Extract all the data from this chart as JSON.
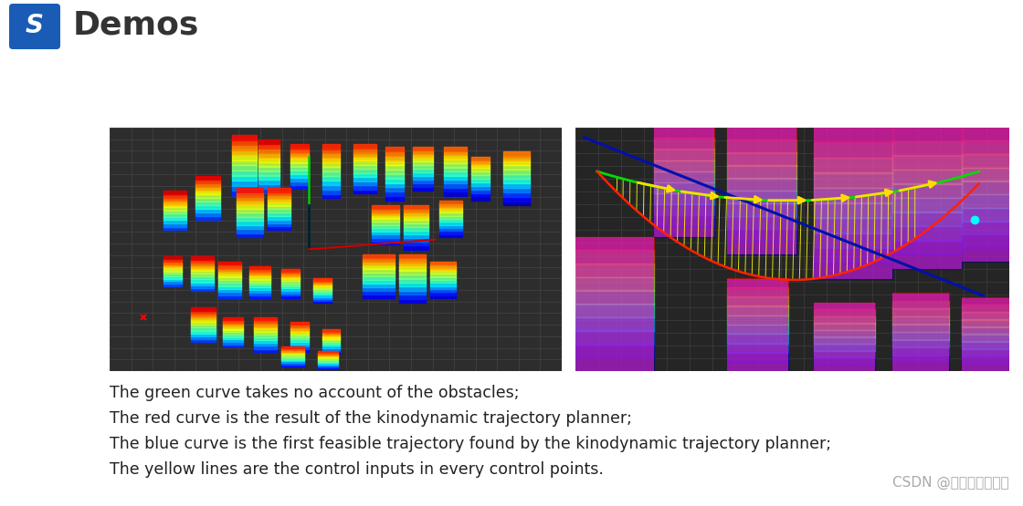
{
  "title": "Demos",
  "title_fontsize": 26,
  "title_color": "#333333",
  "title_fontweight": "bold",
  "icon_color": "#1a5cb5",
  "bg_color": "#ffffff",
  "left_image_bg": "#2d2d2d",
  "right_image_bg": "#252525",
  "text_lines": [
    "The green curve takes no account of the obstacles;",
    "The red curve is the result of the kinodynamic trajectory planner;",
    "The blue curve is the first feasible trajectory found by the kinodynamic trajectory planner;",
    "The yellow lines are the control inputs in every control points."
  ],
  "text_color": "#222222",
  "text_fontsize": 12.5,
  "watermark": "CSDN @读书健身敲代码",
  "watermark_color": "#aaaaaa",
  "watermark_fontsize": 11
}
